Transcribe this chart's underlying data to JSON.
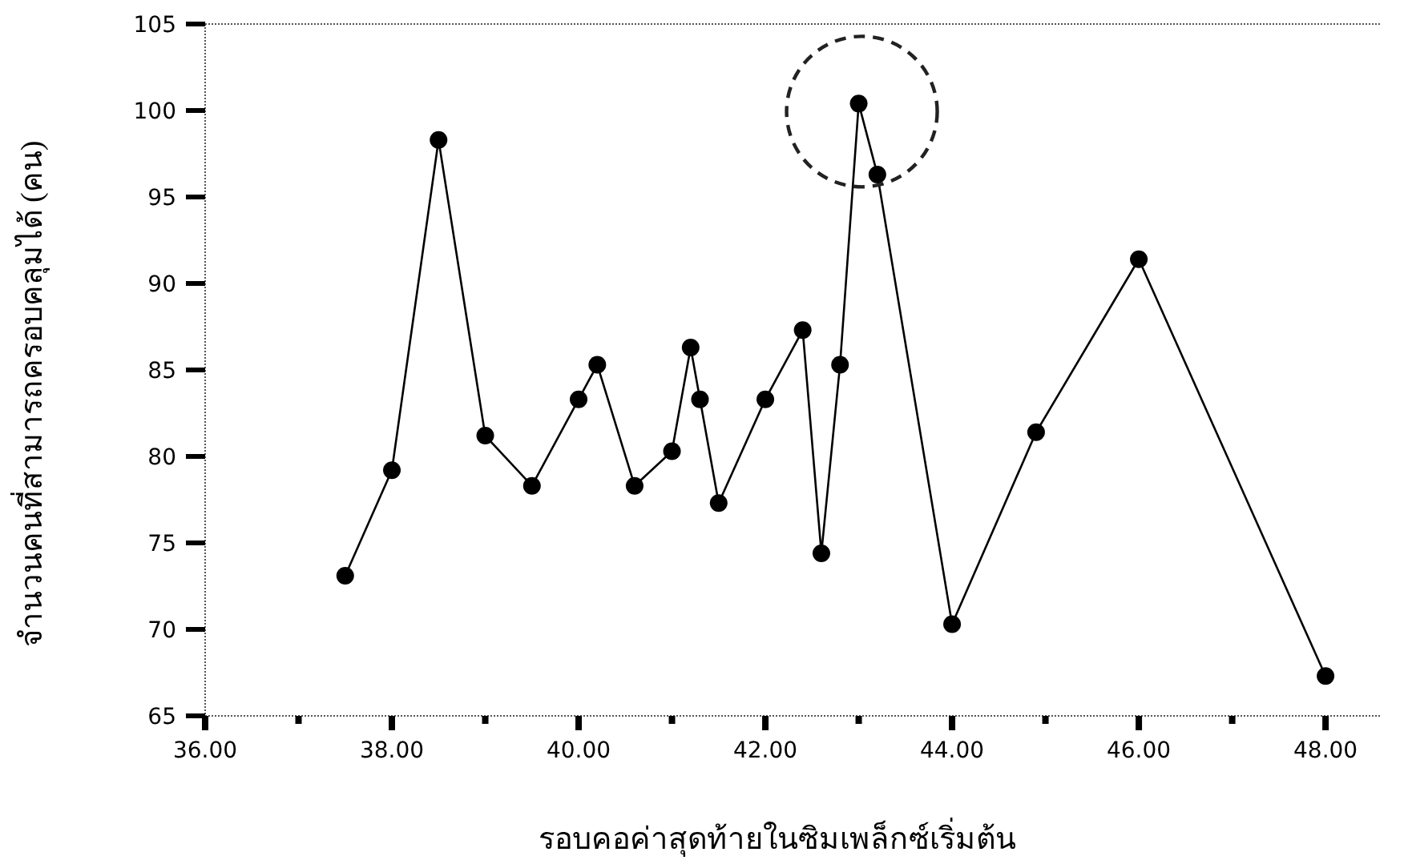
{
  "chart_data": {
    "type": "line",
    "xlabel": "รอบคอค่าสุดท้ายในซิมเพล็กซ์เริ่มต้น",
    "ylabel": "จำนวนคนที่สามารถครอบคลุมได้ (คน)",
    "x": [
      37.5,
      38.0,
      38.5,
      39.0,
      39.5,
      40.0,
      40.2,
      40.6,
      41.0,
      41.2,
      41.3,
      41.5,
      42.0,
      42.4,
      42.6,
      42.8,
      43.0,
      43.2,
      44.0,
      44.9,
      46.0,
      48.0
    ],
    "series": [
      {
        "color": "#000000",
        "values": [
          73.1,
          79.2,
          98.3,
          81.2,
          78.3,
          83.3,
          85.3,
          78.3,
          80.3,
          86.3,
          83.3,
          77.3,
          83.3,
          87.3,
          74.4,
          85.3,
          100.4,
          96.3,
          70.3,
          81.4,
          91.4,
          67.3
        ]
      }
    ],
    "xlim": [
      36,
      48.6
    ],
    "ylim": [
      65,
      105
    ],
    "xticks": [
      {
        "value": 36,
        "label": "36.00"
      },
      {
        "value": 37,
        "label": null
      },
      {
        "value": 38,
        "label": "38.00"
      },
      {
        "value": 39,
        "label": null
      },
      {
        "value": 40,
        "label": "40.00"
      },
      {
        "value": 41,
        "label": null
      },
      {
        "value": 42,
        "label": "42.00"
      },
      {
        "value": 43,
        "label": null
      },
      {
        "value": 44,
        "label": "44.00"
      },
      {
        "value": 45,
        "label": null
      },
      {
        "value": 46,
        "label": "46.00"
      },
      {
        "value": 47,
        "label": null
      },
      {
        "value": 48,
        "label": "48.00"
      }
    ],
    "yticks": [
      65,
      70,
      75,
      80,
      85,
      90,
      95,
      100,
      105
    ],
    "marker": "circle",
    "line_style": "solid",
    "grid": false
  }
}
